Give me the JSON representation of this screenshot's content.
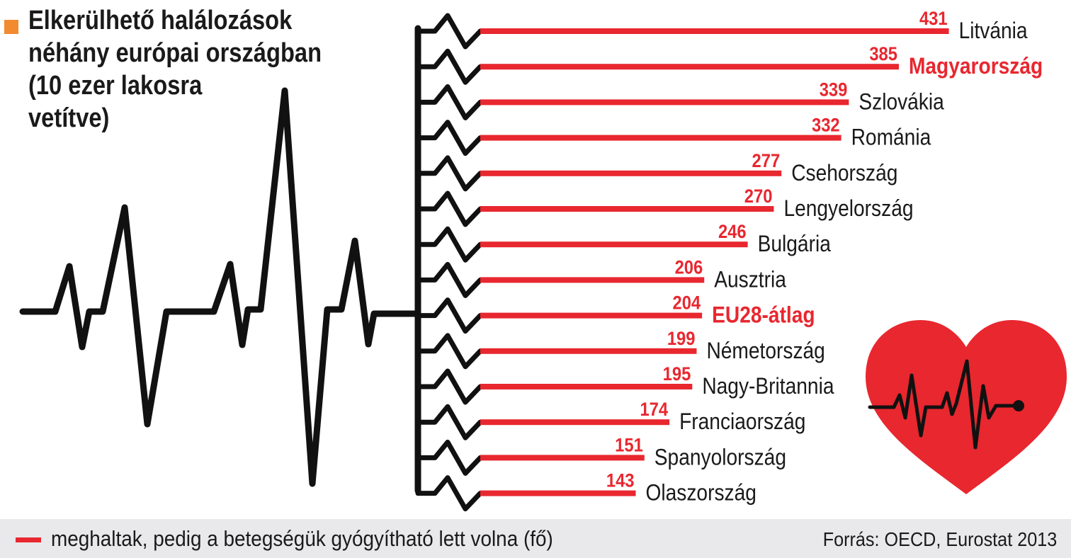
{
  "title": "Elkerülhető halálozások\nnéhány európai országban\n(10 ezer lakosra\nvetítve)",
  "legend": {
    "label": "meghaltak, pedig a betegségük gyógyítható lett volna (fő)"
  },
  "source": "Forrás: OECD, Eurostat 2013",
  "colors": {
    "bar": "#e8272f",
    "highlight_text": "#e8272f",
    "text": "#1a1a1a",
    "line": "#111111",
    "heart": "#e8272f",
    "title_marker": "#f28a2e",
    "footer_bg": "#e9e9eb"
  },
  "icons": [
    "heartbeat-line-icon",
    "heart-icon"
  ],
  "chart_data": {
    "type": "bar",
    "orientation": "horizontal",
    "categories": [
      "Litvánia",
      "Magyarország",
      "Szlovákia",
      "Románia",
      "Csehország",
      "Lengyelország",
      "Bulgária",
      "Ausztria",
      "EU28-átlag",
      "Németország",
      "Nagy-Britannia",
      "Franciaország",
      "Spanyolország",
      "Olaszország"
    ],
    "values": [
      431,
      385,
      339,
      332,
      277,
      270,
      246,
      206,
      204,
      199,
      195,
      174,
      151,
      143
    ],
    "highlighted": [
      "Magyarország",
      "EU28-átlag"
    ],
    "series": [
      {
        "name": "meghaltak, pedig a betegségük gyógyítható lett volna (fő)",
        "values": [
          431,
          385,
          339,
          332,
          277,
          270,
          246,
          206,
          204,
          199,
          195,
          174,
          151,
          143
        ]
      }
    ],
    "title": "Elkerülhető halálozások néhány európai országban (10 ezer lakosra vetítve)",
    "xlabel": "",
    "ylabel": "",
    "grid": false,
    "legend_position": "bottom"
  }
}
